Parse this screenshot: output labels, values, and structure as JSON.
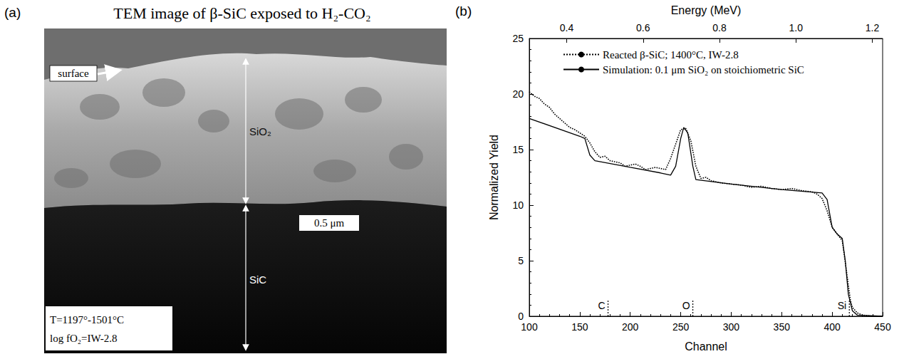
{
  "image_panel": {
    "letter": "(a)",
    "title": "TEM image of β-SiC exposed to H₂-CO₂",
    "surface_label": "surface",
    "layer_label": "SiO₂",
    "substrate_label": "SiC",
    "scale_bar": "0.5 μm",
    "conditions": [
      "T=1197°-1501°C",
      "log fO₂=IW-2.8"
    ]
  },
  "chart_data": {
    "type": "line",
    "letter": "(b)",
    "x_label": "Channel",
    "x2_label": "Energy (MeV)",
    "y_label": "Normalized Yield",
    "xlim": [
      100,
      450
    ],
    "xticks": [
      100,
      150,
      200,
      250,
      300,
      350,
      400,
      450
    ],
    "x2lim": [
      0.302,
      1.227
    ],
    "x2ticks": [
      0.4,
      0.6,
      0.8,
      {
        "value": 1,
        "label": "1.0"
      },
      1.2
    ],
    "ylim": [
      0,
      25
    ],
    "yticks": [
      0,
      5,
      10,
      15,
      20,
      25
    ],
    "grid": false,
    "legend": "upper left",
    "series": [
      {
        "name": "Reacted β-SiC; 1400°C, IW-2.8",
        "color": "#000000",
        "line_style": "dotted",
        "x": [
          100,
          105,
          110,
          115,
          120,
          125,
          130,
          135,
          140,
          145,
          150,
          155,
          160,
          165,
          170,
          175,
          180,
          185,
          190,
          195,
          200,
          205,
          210,
          215,
          220,
          225,
          230,
          235,
          240,
          245,
          250,
          255,
          260,
          265,
          270,
          275,
          280,
          290,
          300,
          310,
          320,
          330,
          340,
          350,
          360,
          370,
          380,
          385,
          390,
          395,
          400,
          405,
          410,
          412,
          415,
          418,
          420,
          425,
          430,
          440,
          450
        ],
        "values": [
          20.2,
          19.8,
          19.6,
          19.1,
          18.8,
          18.2,
          17.8,
          17.4,
          17.0,
          16.8,
          16.5,
          16.2,
          15.6,
          14.8,
          14.3,
          14.4,
          14.0,
          13.9,
          13.8,
          13.5,
          13.6,
          13.7,
          13.5,
          13.2,
          13.3,
          13.4,
          13.3,
          13.2,
          14.2,
          15.5,
          16.8,
          16.9,
          15.8,
          13.5,
          12.4,
          12.5,
          12.2,
          12.0,
          11.9,
          11.8,
          11.6,
          11.7,
          11.5,
          11.4,
          11.5,
          11.3,
          11.2,
          11.0,
          10.6,
          9.5,
          8.0,
          7.4,
          6.8,
          5.5,
          3.5,
          1.5,
          0.8,
          0.3,
          0.1,
          0.0,
          0.0
        ]
      },
      {
        "name": "Simulation: 0.1 μm SiO₂ on stoichiometric SiC",
        "color": "#000000",
        "line_style": "solid",
        "x": [
          100,
          150,
          155,
          160,
          165,
          200,
          230,
          240,
          245,
          250,
          253,
          257,
          262,
          265,
          300,
          350,
          390,
          395,
          400,
          405,
          410,
          413,
          416,
          420,
          425,
          450
        ],
        "values": [
          17.8,
          16.2,
          16.0,
          14.5,
          14.0,
          13.4,
          12.9,
          12.7,
          13.5,
          16.0,
          17.0,
          16.5,
          13.5,
          12.3,
          11.9,
          11.4,
          11.1,
          10.5,
          8.0,
          7.4,
          7.0,
          5.0,
          2.0,
          0.5,
          0.1,
          0.0
        ]
      }
    ],
    "annotations": [
      {
        "text": "C",
        "x": 178
      },
      {
        "text": "O",
        "x": 262
      },
      {
        "text": "Si",
        "x": 417
      }
    ]
  }
}
